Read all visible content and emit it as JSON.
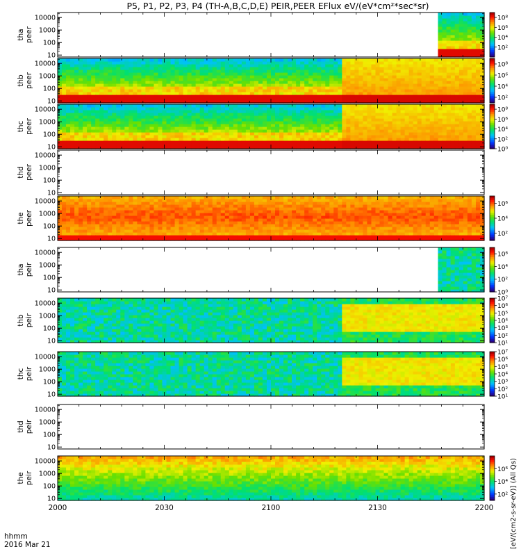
{
  "chart_data": {
    "type": "heatmap",
    "title": "P5, P1, P2, P3, P4 (TH-A,B,C,D,E) PEIR,PEER EFlux eV/(eV*cm²*sec*sr)",
    "x_axis": {
      "label_line1": "hhmm",
      "label_line2": "2016 Mar 21",
      "ticks": [
        "2000",
        "2030",
        "2100",
        "2130",
        "2200"
      ],
      "range_minutes": [
        0,
        120
      ]
    },
    "y_axis": {
      "scale": "log",
      "ticks": [
        "10",
        "100",
        "1000",
        "10000"
      ],
      "range_eV": [
        7,
        25000
      ]
    },
    "colorbar_units": "[eV/(cm2-s-sr-eV)] (All Qs)",
    "panels": [
      {
        "name": "tha peer",
        "label1": "tha",
        "label2": "peer",
        "data_window": [
          107,
          120
        ],
        "onset": null,
        "colorbar": true,
        "cb_ticks": [
          "10⁸",
          "10⁶",
          "10⁴",
          "10²"
        ],
        "cb_range": [
          0,
          9
        ]
      },
      {
        "name": "thb peer",
        "label1": "thb",
        "label2": "peer",
        "data_window": [
          0,
          120
        ],
        "onset": 80,
        "colorbar": true,
        "cb_ticks": [
          "10⁸",
          "10⁶",
          "10⁴",
          "10²"
        ],
        "cb_range": [
          1,
          9
        ]
      },
      {
        "name": "thc peer",
        "label1": "thc",
        "label2": "peer",
        "data_window": [
          0,
          120
        ],
        "onset": 80,
        "colorbar": true,
        "cb_ticks": [
          "10⁸",
          "10⁶",
          "10⁴",
          "10²",
          "10⁰"
        ],
        "cb_range": [
          0,
          9
        ]
      },
      {
        "name": "thd peer",
        "label1": "thd",
        "label2": "peer",
        "data_window": null,
        "onset": null,
        "colorbar": false
      },
      {
        "name": "the peer",
        "label1": "the",
        "label2": "peer",
        "data_window": [
          0,
          120
        ],
        "onset": null,
        "colorbar": true,
        "cb_ticks": [
          "10⁶",
          "10⁴",
          "10²"
        ],
        "cb_range": [
          1,
          7
        ]
      },
      {
        "name": "tha peir",
        "label1": "tha",
        "label2": "peir",
        "data_window": [
          107,
          120
        ],
        "onset": null,
        "colorbar": true,
        "cb_ticks": [
          "10⁶",
          "10⁴",
          "10²",
          "10⁰"
        ],
        "cb_range": [
          0,
          7
        ]
      },
      {
        "name": "thb peir",
        "label1": "thb",
        "label2": "peir",
        "data_window": [
          0,
          120
        ],
        "onset": 80,
        "colorbar": true,
        "cb_ticks": [
          "10⁷",
          "10⁶",
          "10⁵",
          "10⁴",
          "10³",
          "10²",
          "10¹"
        ],
        "cb_range": [
          1,
          7
        ]
      },
      {
        "name": "thc peir",
        "label1": "thc",
        "label2": "peir",
        "data_window": [
          0,
          120
        ],
        "onset": 80,
        "colorbar": true,
        "cb_ticks": [
          "10⁷",
          "10⁶",
          "10⁵",
          "10⁴",
          "10³",
          "10²",
          "10¹"
        ],
        "cb_range": [
          1,
          7
        ]
      },
      {
        "name": "thd peir",
        "label1": "thd",
        "label2": "peir",
        "data_window": null,
        "onset": null,
        "colorbar": false
      },
      {
        "name": "the peir",
        "label1": "the",
        "label2": "peir",
        "data_window": [
          0,
          120
        ],
        "onset": null,
        "colorbar": true,
        "cb_ticks": [
          "10⁶",
          "10⁴",
          "10²"
        ],
        "cb_range": [
          1,
          8
        ]
      }
    ]
  }
}
